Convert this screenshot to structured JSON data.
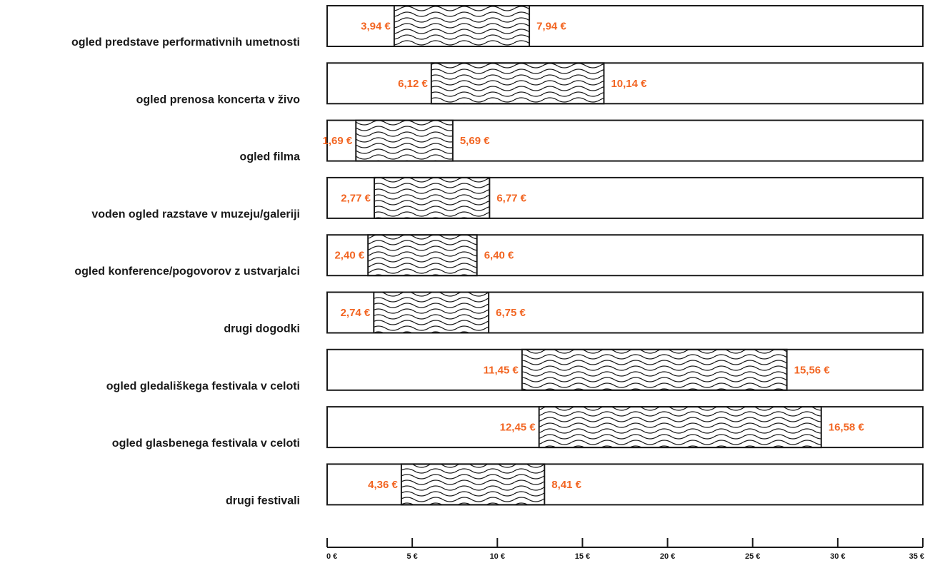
{
  "chart_data": {
    "type": "bar",
    "subtype": "range",
    "categories": [
      "ogled predstave performativnih umetnosti",
      "ogled prenosa koncerta v živo",
      "ogled filma",
      "voden ogled razstave v muzeju/galeriji",
      "ogled konference/pogovorov z ustvarjalci",
      "drugi dogodki",
      "ogled gledališkega festivala v celoti",
      "ogled glasbenega festivala v celoti",
      "drugi festivali"
    ],
    "low": [
      3.94,
      6.12,
      1.69,
      2.77,
      2.4,
      2.74,
      11.45,
      12.45,
      4.36
    ],
    "high": [
      11.88,
      16.26,
      7.38,
      9.54,
      8.8,
      9.49,
      27.01,
      29.03,
      12.77
    ],
    "low_labels": [
      "3,94 €",
      "6,12 €",
      "1,69 €",
      "2,77 €",
      "2,40 €",
      "2,74 €",
      "11,45 €",
      "12,45 €",
      "4,36 €"
    ],
    "high_labels": [
      "7,94 €",
      "10,14 €",
      "5,69 €",
      "6,77 €",
      "6,40 €",
      "6,75 €",
      "15,56 €",
      "16,58 €",
      "8,41 €"
    ],
    "xlim": [
      0,
      35
    ],
    "x_ticks": [
      0,
      5,
      10,
      15,
      20,
      25,
      30,
      35
    ],
    "x_tick_labels": [
      "0 €",
      "5 €",
      "10 €",
      "15 €",
      "20 €",
      "25 €",
      "30 €",
      "35 €"
    ],
    "grid": false,
    "legend": "none",
    "colors": {
      "label": "#f26522",
      "stroke": "#1a1a1a",
      "text": "#1a1a1a",
      "background": "#ffffff"
    },
    "fill_pattern": "wavy-lines"
  }
}
